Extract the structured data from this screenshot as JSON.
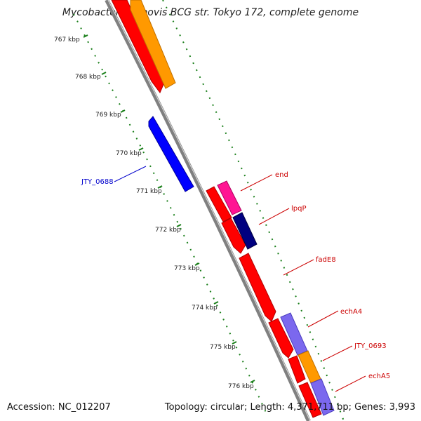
{
  "title": "Mycobacterium bovis BCG str. Tokyo 172, complete genome",
  "accession": "Accession: NC_012207",
  "summary": "Topology: circular; Length: 4,371,711 bp; Genes: 3,993",
  "ticks": [
    "767 kbp",
    "768 kbp",
    "769 kbp",
    "770 kbp",
    "771 kbp",
    "772 kbp",
    "773 kbp",
    "774 kbp",
    "775 kbp",
    "776 kbp"
  ],
  "genes": [
    {
      "name": "JTY_0688",
      "color": "#0000cc"
    },
    {
      "name": "end",
      "color": "#cc0000"
    },
    {
      "name": "lpqP",
      "color": "#cc0000"
    },
    {
      "name": "fadE8",
      "color": "#cc0000"
    },
    {
      "name": "echA4",
      "color": "#cc0000"
    },
    {
      "name": "JTY_0693",
      "color": "#cc0000"
    },
    {
      "name": "echA5",
      "color": "#cc0000"
    }
  ],
  "colors": {
    "backbone": "#808080",
    "cds_red": "#ff0000",
    "cds_orange": "#ff9900",
    "cds_blue": "#0000ff",
    "cds_magenta": "#ff1493",
    "cds_navy": "#000080",
    "cds_lavender": "#7b68ee",
    "tick_green": "#1a7f1a"
  }
}
